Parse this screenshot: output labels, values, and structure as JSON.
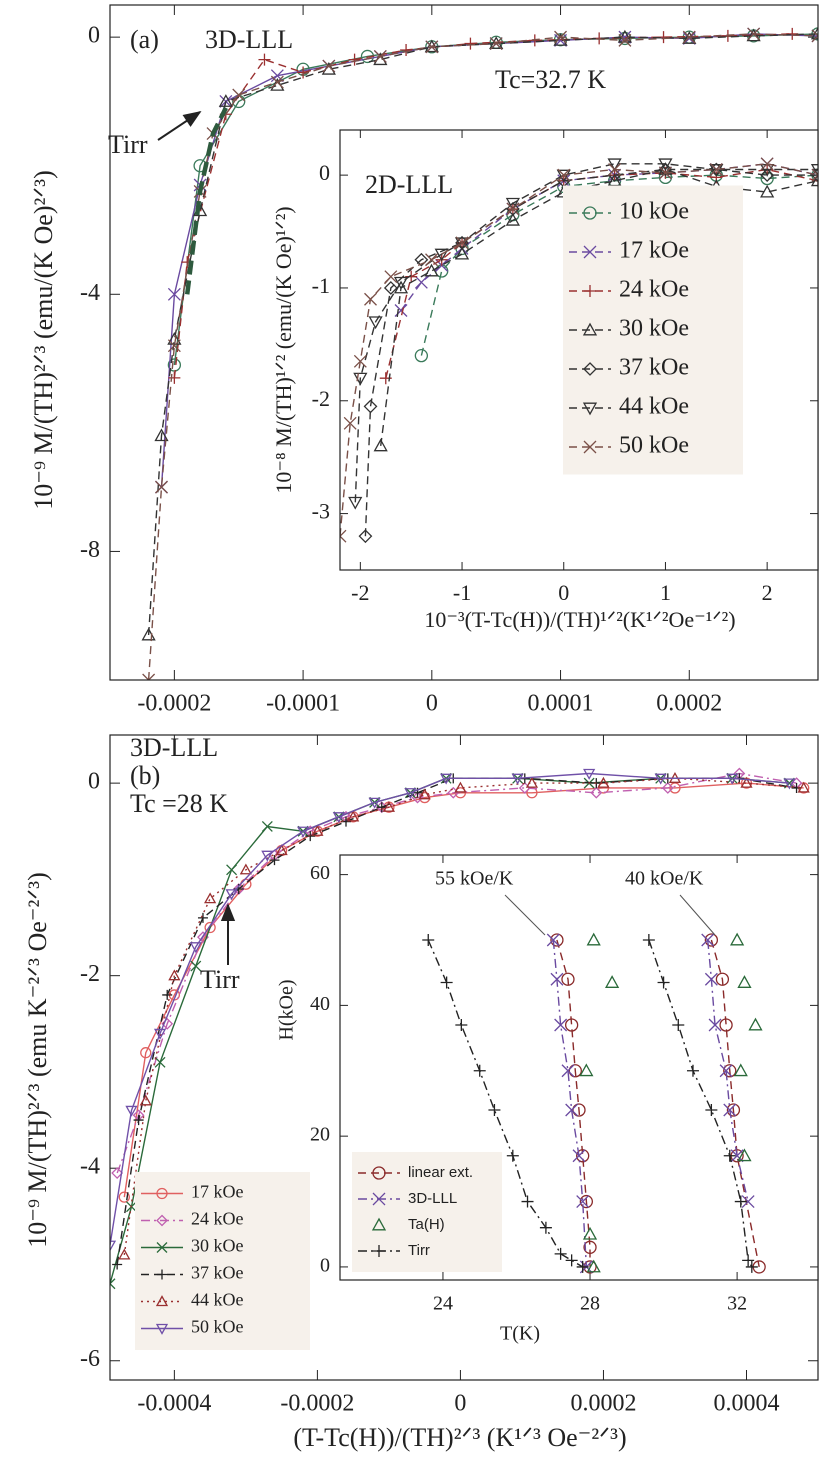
{
  "chart_data": [
    {
      "type": "line",
      "ylabel": "10⁻⁹ M/(TH)²ᐟ³ (emu/(K Oe)²ᐟ³)",
      "annotations": [
        "(a)",
        "3D-LLL",
        "Tc=32.7 K",
        "Tirr"
      ],
      "xlim": [
        -0.00025,
        0.0003
      ],
      "xticks": [
        -0.0002,
        -0.0001,
        0,
        0.0001,
        0.0002
      ],
      "ylim": [
        -10,
        0.5
      ],
      "yticks": [
        -8,
        -4,
        0
      ],
      "series": [
        {
          "color": "#3a7a5a",
          "marker": "o",
          "style": "solid",
          "x": [
            -0.0002,
            -0.00018,
            -0.00015,
            -0.0001,
            -5e-05,
            0,
            5e-05,
            0.0001,
            0.00015,
            0.0002,
            0.00025,
            0.0003
          ],
          "values": [
            -5.1,
            -2.0,
            -1.0,
            -0.5,
            -0.3,
            -0.15,
            -0.08,
            -0.04,
            -0.02,
            0.0,
            0.02,
            0.05
          ]
        },
        {
          "color": "#6a4aa0",
          "marker": "x",
          "style": "solid",
          "x": [
            -0.00021,
            -0.0002,
            -0.00018,
            -0.00016,
            -0.00012,
            -8e-05,
            -4e-05,
            0,
            5e-05,
            0.0001,
            0.00015,
            0.0002,
            0.00025,
            0.0003
          ],
          "values": [
            -7.0,
            -4.0,
            -2.3,
            -1.0,
            -0.6,
            -0.45,
            -0.3,
            -0.15,
            -0.1,
            -0.05,
            0,
            -0.02,
            0.05,
            0.02
          ]
        },
        {
          "color": "#9a3030",
          "marker": "+",
          "style": "dashed",
          "x": [
            -0.0002,
            -0.00019,
            -0.00016,
            -0.00013,
            -0.0001,
            -6e-05,
            -2e-05,
            3e-05,
            8e-05,
            0.00013,
            0.00018,
            0.00023,
            0.00028
          ],
          "values": [
            -5.3,
            -3.5,
            -1.2,
            -0.35,
            -0.55,
            -0.35,
            -0.2,
            -0.1,
            -0.05,
            -0.02,
            0,
            0.02,
            0.05
          ]
        },
        {
          "color": "#333333",
          "marker": "^",
          "style": "dashed",
          "x": [
            -0.00022,
            -0.00021,
            -0.0002,
            -0.00018,
            -0.00016,
            -0.00012,
            -8e-05,
            -4e-05,
            0,
            5e-05,
            0.0001,
            0.00015,
            0.0002,
            0.00025,
            0.0003
          ],
          "values": [
            -9.3,
            -6.2,
            -4.7,
            -2.7,
            -1.0,
            -0.75,
            -0.5,
            -0.35,
            -0.15,
            -0.1,
            -0.05,
            0.0,
            -0.02,
            0.02,
            0.05
          ]
        },
        {
          "color": "#7a5048",
          "marker": "x",
          "style": "dashed",
          "x": [
            -0.00022,
            -0.00021,
            -0.0002,
            -0.00018,
            -0.00017,
            -0.00015,
            -0.00012,
            -8e-05,
            -4e-05,
            0,
            5e-05,
            0.0001,
            0.00015,
            0.0002,
            0.00025,
            0.0003
          ],
          "values": [
            -10,
            -7,
            -4.8,
            -2.4,
            -1.5,
            -0.9,
            -0.7,
            -0.45,
            -0.3,
            -0.15,
            -0.1,
            0,
            -0.05,
            0,
            0.05,
            0.02
          ]
        },
        {
          "color": "#2e5a3e",
          "marker": "none",
          "style": "thick-dashed",
          "x": [
            -0.00019,
            -0.00018,
            -0.00017,
            -0.00016
          ],
          "values": [
            -4.0,
            -2.4,
            -1.5,
            -1.1
          ]
        }
      ]
    },
    {
      "type": "line",
      "ylabel": "10⁻⁸ M/(TH)¹ᐟ² (emu/(K Oe)¹ᐟ²)",
      "xlabel": "10⁻³(T-Tc(H))/(TH)¹ᐟ²(K¹ᐟ²Oe⁻¹ᐟ²)",
      "annotations": [
        "2D-LLL"
      ],
      "legend": "right",
      "xlim": [
        -2.2,
        2.5
      ],
      "xticks": [
        -2,
        -1,
        0,
        1,
        2
      ],
      "ylim": [
        -3.5,
        0.4
      ],
      "yticks": [
        -3,
        -2,
        -1,
        0
      ],
      "series": [
        {
          "name": "10 kOe",
          "color": "#3a7a5a",
          "marker": "o",
          "style": "dashed",
          "x": [
            -1.4,
            -1.2,
            -1.0,
            -0.5,
            0,
            0.5,
            1,
            1.5,
            2,
            2.5
          ],
          "values": [
            -1.6,
            -0.85,
            -0.65,
            -0.35,
            -0.1,
            -0.05,
            -0.02,
            0,
            -0.03,
            0.0
          ]
        },
        {
          "name": "17 kOe",
          "color": "#6a4aa0",
          "marker": "x",
          "style": "dashed",
          "x": [
            -1.6,
            -1.4,
            -1.2,
            -1,
            -0.5,
            0,
            0.5,
            1,
            1.5,
            2,
            2.5
          ],
          "values": [
            -1.2,
            -0.95,
            -0.8,
            -0.65,
            -0.3,
            -0.05,
            0,
            0.02,
            0.05,
            0.1,
            0
          ]
        },
        {
          "name": "24 kOe",
          "color": "#9a3030",
          "marker": "+",
          "style": "dashed",
          "x": [
            -1.75,
            -1.5,
            -1.2,
            -1,
            -0.5,
            0,
            0.5,
            1,
            1.5,
            2,
            2.5
          ],
          "values": [
            -1.8,
            -0.9,
            -0.75,
            -0.6,
            -0.3,
            -0.05,
            0,
            0.02,
            -0.02,
            0.05,
            -0.05
          ]
        },
        {
          "name": "30 kOe",
          "color": "#333333",
          "marker": "^",
          "style": "dashed",
          "x": [
            -1.8,
            -1.6,
            -1.3,
            -1,
            -0.5,
            0,
            0.5,
            1,
            1.5,
            2,
            2.5
          ],
          "values": [
            -2.4,
            -1.0,
            -0.85,
            -0.7,
            -0.4,
            -0.15,
            -0.05,
            0.05,
            -0.1,
            -0.15,
            -0.05
          ]
        },
        {
          "name": "37 kOe",
          "color": "#333333",
          "marker": "D",
          "style": "dashed",
          "x": [
            -1.95,
            -1.9,
            -1.7,
            -1.4,
            -1,
            -0.5,
            0,
            0.5,
            1,
            1.5,
            2,
            2.5
          ],
          "values": [
            -3.2,
            -2.05,
            -1.0,
            -0.75,
            -0.6,
            -0.3,
            -0.05,
            0,
            0.05,
            0.05,
            0,
            0
          ]
        },
        {
          "name": "44 kOe",
          "color": "#333333",
          "marker": "v",
          "style": "dashed",
          "x": [
            -2.05,
            -2,
            -1.85,
            -1.6,
            -1.2,
            -1,
            -0.5,
            0,
            0.5,
            1,
            1.5,
            2,
            2.5
          ],
          "values": [
            -2.9,
            -1.8,
            -1.3,
            -0.95,
            -0.7,
            -0.6,
            -0.25,
            0,
            0.1,
            0.1,
            0.05,
            0.05,
            0.05
          ]
        },
        {
          "name": "50 kOe",
          "color": "#7a5048",
          "marker": "x",
          "style": "dashed",
          "x": [
            -2.2,
            -2.1,
            -2.0,
            -1.9,
            -1.7,
            -1.3,
            -1,
            -0.5,
            0,
            0.5,
            1,
            1.5,
            2,
            2.5
          ],
          "values": [
            -3.2,
            -2.2,
            -1.65,
            -1.1,
            -0.9,
            -0.75,
            -0.6,
            -0.3,
            0,
            0.05,
            0.02,
            0.05,
            0.1,
            0
          ]
        }
      ]
    },
    {
      "type": "line",
      "ylabel": "10⁻⁹ M/(TH)²ᐟ³ (emu K⁻²ᐟ³ Oe⁻²ᐟ³)",
      "xlabel": "(T-Tc(H))/(TH)²ᐟ³  (K¹ᐟ³ Oe⁻²ᐟ³)",
      "annotations": [
        "3D-LLL",
        "(b)",
        "Tc =28 K",
        "Tirr"
      ],
      "legend": "lower left",
      "xlim": [
        -0.00049,
        0.0005
      ],
      "xticks": [
        -0.0004,
        -0.0002,
        0,
        0.0002,
        0.0004
      ],
      "ylim": [
        -6.2,
        0.5
      ],
      "yticks": [
        -6,
        -4,
        -2,
        0
      ],
      "series": [
        {
          "name": "17 kOe",
          "color": "#e06060",
          "marker": "o",
          "style": "solid",
          "x": [
            -0.00047,
            -0.00044,
            -0.0004,
            -0.00035,
            -0.0003,
            -0.00025,
            -0.0002,
            -0.00015,
            -0.0001,
            -5e-05,
            0,
            0.0001,
            0.0002,
            0.0003,
            0.0004,
            0.00048
          ],
          "values": [
            -4.3,
            -2.8,
            -2.2,
            -1.5,
            -1.05,
            -0.7,
            -0.5,
            -0.35,
            -0.25,
            -0.15,
            -0.1,
            -0.1,
            -0.05,
            -0.05,
            0,
            -0.05
          ]
        },
        {
          "name": "24 kOe",
          "color": "#c060b0",
          "marker": "D",
          "style": "dashdot",
          "x": [
            -0.00048,
            -0.00045,
            -0.00041,
            -0.00036,
            -0.00031,
            -0.00026,
            -0.00021,
            -0.00016,
            -0.00011,
            -6e-05,
            -1e-05,
            9e-05,
            0.00019,
            0.00029,
            0.00039,
            0.00047
          ],
          "values": [
            -4.05,
            -3.45,
            -2.5,
            -1.6,
            -1.1,
            -0.75,
            -0.5,
            -0.35,
            -0.25,
            -0.15,
            -0.1,
            -0.05,
            -0.1,
            -0.05,
            0.1,
            0
          ]
        },
        {
          "name": "30 kOe",
          "color": "#2a6a3a",
          "marker": "x",
          "style": "solid",
          "x": [
            -0.00049,
            -0.00046,
            -0.00042,
            -0.00037,
            -0.00032,
            -0.00027,
            -0.00022,
            -0.00017,
            -0.00012,
            -7e-05,
            -2e-05,
            8e-05,
            0.00018,
            0.00028,
            0.00038,
            0.00046
          ],
          "values": [
            -5.2,
            -4.4,
            -2.9,
            -1.9,
            -0.9,
            -0.45,
            -0.5,
            -0.35,
            -0.2,
            -0.1,
            0.05,
            0.05,
            0,
            0.05,
            0.05,
            0
          ]
        },
        {
          "name": "37 kOe",
          "color": "#222222",
          "marker": "+",
          "style": "dashed",
          "x": [
            -0.00048,
            -0.00045,
            -0.00041,
            -0.00036,
            -0.00031,
            -0.00026,
            -0.00021,
            -0.00016,
            -0.00011,
            -6e-05,
            -1e-05,
            9e-05,
            0.00019,
            0.00029,
            0.00039,
            0.00047
          ],
          "values": [
            -5.0,
            -3.5,
            -2.2,
            -1.4,
            -1.1,
            -0.8,
            -0.55,
            -0.4,
            -0.25,
            -0.1,
            0.05,
            0.05,
            0,
            0.05,
            0.05,
            -0.05
          ]
        },
        {
          "name": "44 kOe",
          "color": "#9a3030",
          "marker": "^",
          "style": "dotted",
          "x": [
            -0.00047,
            -0.00044,
            -0.0004,
            -0.00035,
            -0.0003,
            -0.00025,
            -0.0002,
            -0.00015,
            -0.0001,
            -5e-05,
            0,
            0.0001,
            0.0002,
            0.0003,
            0.0004,
            0.00048
          ],
          "values": [
            -4.9,
            -3.3,
            -2.0,
            -1.2,
            -0.9,
            -0.7,
            -0.5,
            -0.35,
            -0.25,
            -0.12,
            -0.05,
            0,
            0,
            0.05,
            0,
            -0.05
          ]
        },
        {
          "name": "50 kOe",
          "color": "#7050a8",
          "marker": "v",
          "style": "solid",
          "x": [
            -0.00049,
            -0.00046,
            -0.00042,
            -0.00037,
            -0.00032,
            -0.00027,
            -0.00022,
            -0.00017,
            -0.00012,
            -7e-05,
            -2e-05,
            8e-05,
            0.00018,
            0.00028,
            0.00038,
            0.00046
          ],
          "values": [
            -4.8,
            -3.4,
            -2.6,
            -1.7,
            -1.15,
            -0.75,
            -0.5,
            -0.35,
            -0.2,
            -0.1,
            0.05,
            0.05,
            0.1,
            0.05,
            0.05,
            0
          ]
        }
      ]
    },
    {
      "type": "line",
      "ylabel": "H(kOe)",
      "xlabel": "T(K)",
      "annotations": [
        "55 kOe/K",
        "40 kOe/K"
      ],
      "legend": "lower left",
      "xlim": [
        21.2,
        34.2
      ],
      "xticks": [
        24,
        28,
        32
      ],
      "ylim": [
        -2,
        63
      ],
      "yticks": [
        0,
        20,
        40,
        60
      ],
      "series": [
        {
          "name": "linear ext.",
          "color": "#8a2a2a",
          "marker": "o",
          "style": "dashed",
          "x": [
            27.1,
            27.4,
            27.5,
            27.6,
            27.7,
            27.8,
            27.9,
            28.0,
            28.0,
            null,
            31.3,
            31.6,
            31.7,
            31.8,
            31.9,
            32.0,
            32.6
          ],
          "values": [
            50,
            44,
            37,
            30,
            24,
            17,
            10,
            3,
            0,
            null,
            50,
            44,
            37,
            30,
            24,
            17,
            0
          ]
        },
        {
          "name": "3D-LLL",
          "color": "#6a4aa0",
          "marker": "x",
          "style": "dashdot",
          "x": [
            27.0,
            27.1,
            27.2,
            27.4,
            27.5,
            27.7,
            27.8,
            27.9,
            null,
            31.2,
            31.3,
            31.4,
            31.7,
            31.8,
            32.0,
            32.3
          ],
          "values": [
            50,
            44,
            37,
            30,
            24,
            17,
            10,
            0,
            null,
            50,
            44,
            37,
            30,
            24,
            17,
            10
          ]
        },
        {
          "name": "Ta(H)",
          "color": "#2a6a3a",
          "marker": "^",
          "style": "none",
          "x": [
            28.1,
            28.6,
            27.9,
            28.0,
            28.1,
            32.0,
            32.2,
            32.5,
            32.1,
            32.2
          ],
          "values": [
            50,
            43.5,
            30,
            5,
            0,
            50,
            43.5,
            37,
            30,
            17
          ]
        },
        {
          "name": "Tirr",
          "color": "#222222",
          "marker": "+",
          "style": "dashdot",
          "x": [
            23.6,
            24.1,
            24.5,
            25.0,
            25.4,
            25.9,
            26.3,
            26.8,
            27.2,
            27.5,
            27.8,
            null,
            29.6,
            30.0,
            30.4,
            30.8,
            31.3,
            31.8,
            32.1,
            32.3,
            32.4
          ],
          "values": [
            50,
            43.5,
            37,
            30,
            24,
            17,
            10,
            6,
            2,
            1,
            0,
            null,
            50,
            43.5,
            37,
            30,
            24,
            17,
            10,
            1,
            0
          ]
        }
      ]
    }
  ]
}
